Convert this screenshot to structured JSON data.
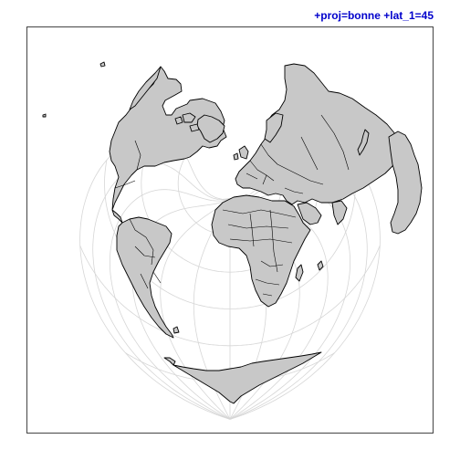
{
  "map": {
    "title": "+proj=bonne +lat_1=45",
    "projection": "Bonne",
    "standard_parallel": 45,
    "graticule": "on",
    "colors": {
      "title": "#0000cc",
      "land_fill": "#c8c8c8",
      "land_outline": "#000000",
      "graticule": "#d6d6d6",
      "frame": "#444444",
      "background": "#ffffff"
    }
  }
}
